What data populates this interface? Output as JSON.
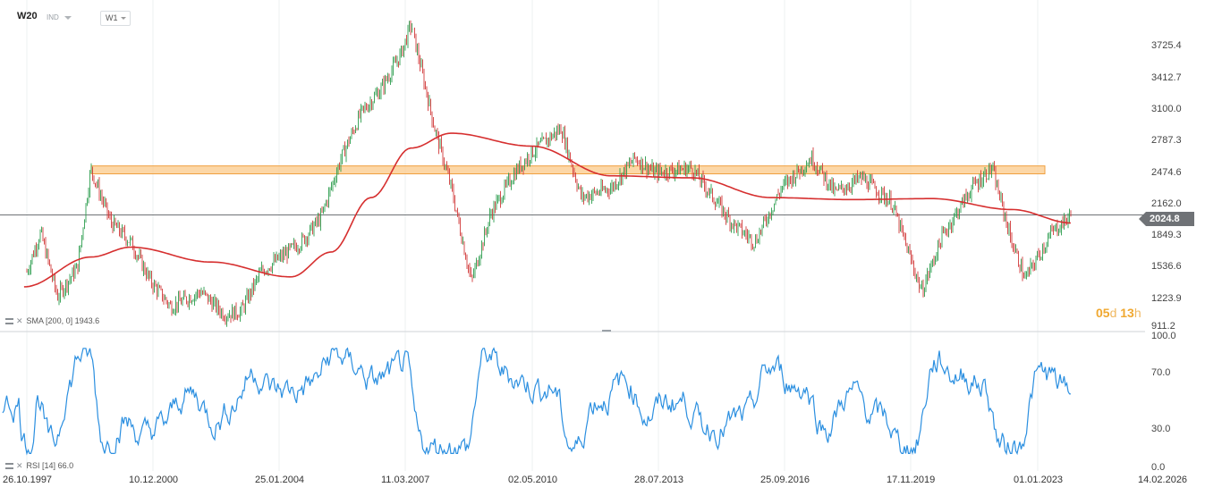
{
  "header": {
    "symbol": "W20",
    "market": "IND",
    "timeframe": "W1"
  },
  "price_axis": {
    "labels": [
      "3725.4",
      "3412.7",
      "3100.0",
      "2787.3",
      "2474.6",
      "2162.0",
      "1849.3",
      "1536.6",
      "1223.9",
      "911.2"
    ],
    "last_price": "2024.8",
    "last_price_value": 2024.8
  },
  "rsi_axis": {
    "labels": [
      "100.0",
      "70.0",
      "30.0",
      "0.0"
    ]
  },
  "time_axis": {
    "labels": [
      "26.10.1997",
      "10.12.2000",
      "25.01.2004",
      "11.03.2007",
      "02.05.2010",
      "28.07.2013",
      "25.09.2016",
      "17.11.2019",
      "01.01.2023",
      "14.02.2026"
    ]
  },
  "countdown": {
    "days": "05",
    "days_unit": "d",
    "hours": "13",
    "hours_unit": "h"
  },
  "indicators": {
    "sma_label": "SMA [200, 0] 1943.6",
    "rsi_label": "RSI [14] 66.0"
  },
  "zone": {
    "low": 2440,
    "high": 2520
  },
  "colors": {
    "up": "#2e9e4f",
    "down": "#d23a3a",
    "sma": "#d62f2f",
    "rsi": "#2b8fe0",
    "zone_fill": "#fbc98a",
    "zone_stroke": "#f0a040",
    "last_price_bg": "#6f7276",
    "countdown": "#f0a830"
  },
  "chart_data": {
    "type": "candlestick",
    "series": [
      {
        "name": "W20",
        "close": [
          {
            "date": "1997-10-26",
            "value": 1450
          },
          {
            "date": "1998-03",
            "value": 1850
          },
          {
            "date": "1998-08",
            "value": 1200
          },
          {
            "date": "1999-02",
            "value": 1500
          },
          {
            "date": "1999-06",
            "value": 2490
          },
          {
            "date": "1999-12",
            "value": 1950
          },
          {
            "date": "2000-06",
            "value": 1750
          },
          {
            "date": "2000-12",
            "value": 1350
          },
          {
            "date": "2001-06",
            "value": 1100
          },
          {
            "date": "2002-03",
            "value": 1250
          },
          {
            "date": "2002-10",
            "value": 1020
          },
          {
            "date": "2003-03",
            "value": 1050
          },
          {
            "date": "2003-09",
            "value": 1450
          },
          {
            "date": "2004-03",
            "value": 1600
          },
          {
            "date": "2004-09",
            "value": 1750
          },
          {
            "date": "2005-03",
            "value": 2000
          },
          {
            "date": "2005-09",
            "value": 2600
          },
          {
            "date": "2006-03",
            "value": 3050
          },
          {
            "date": "2006-09",
            "value": 3300
          },
          {
            "date": "2007-03",
            "value": 3650
          },
          {
            "date": "2007-06",
            "value": 3950
          },
          {
            "date": "2008-01",
            "value": 2900
          },
          {
            "date": "2008-06",
            "value": 2300
          },
          {
            "date": "2008-12",
            "value": 1350
          },
          {
            "date": "2009-06",
            "value": 2050
          },
          {
            "date": "2010-01",
            "value": 2450
          },
          {
            "date": "2010-06",
            "value": 2650
          },
          {
            "date": "2011-03",
            "value": 2900
          },
          {
            "date": "2011-09",
            "value": 2200
          },
          {
            "date": "2012-06",
            "value": 2300
          },
          {
            "date": "2013-01",
            "value": 2600
          },
          {
            "date": "2013-07",
            "value": 2450
          },
          {
            "date": "2014-06",
            "value": 2500
          },
          {
            "date": "2015-06",
            "value": 1950
          },
          {
            "date": "2016-01",
            "value": 1750
          },
          {
            "date": "2016-09",
            "value": 2300
          },
          {
            "date": "2017-06",
            "value": 2600
          },
          {
            "date": "2018-01",
            "value": 2250
          },
          {
            "date": "2018-09",
            "value": 2400
          },
          {
            "date": "2019-06",
            "value": 2150
          },
          {
            "date": "2020-03",
            "value": 1250
          },
          {
            "date": "2020-09",
            "value": 1800
          },
          {
            "date": "2021-06",
            "value": 2300
          },
          {
            "date": "2021-12",
            "value": 2500
          },
          {
            "date": "2022-06",
            "value": 1750
          },
          {
            "date": "2022-10",
            "value": 1380
          },
          {
            "date": "2023-06",
            "value": 1850
          },
          {
            "date": "2023-12",
            "value": 2024.8
          }
        ]
      },
      {
        "name": "SMA [200, 0]",
        "values": [
          {
            "date": "1997-10",
            "value": 1300
          },
          {
            "date": "1999-06",
            "value": 1600
          },
          {
            "date": "2000-06",
            "value": 1700
          },
          {
            "date": "2002-06",
            "value": 1550
          },
          {
            "date": "2004-06",
            "value": 1400
          },
          {
            "date": "2005-06",
            "value": 1650
          },
          {
            "date": "2006-06",
            "value": 2200
          },
          {
            "date": "2007-06",
            "value": 2700
          },
          {
            "date": "2008-06",
            "value": 2850
          },
          {
            "date": "2010-06",
            "value": 2720
          },
          {
            "date": "2012-06",
            "value": 2420
          },
          {
            "date": "2014-06",
            "value": 2400
          },
          {
            "date": "2016-06",
            "value": 2200
          },
          {
            "date": "2018-06",
            "value": 2180
          },
          {
            "date": "2020-06",
            "value": 2190
          },
          {
            "date": "2022-06",
            "value": 2080
          },
          {
            "date": "2023-12",
            "value": 1943.6
          }
        ]
      },
      {
        "name": "RSI [14]",
        "last": 66.0
      }
    ],
    "x_range": [
      "1997-10-26",
      "2026-02-14"
    ],
    "y_range": [
      911.2,
      4000
    ],
    "rsi_range": [
      0,
      100
    ],
    "grid": "vertical"
  }
}
